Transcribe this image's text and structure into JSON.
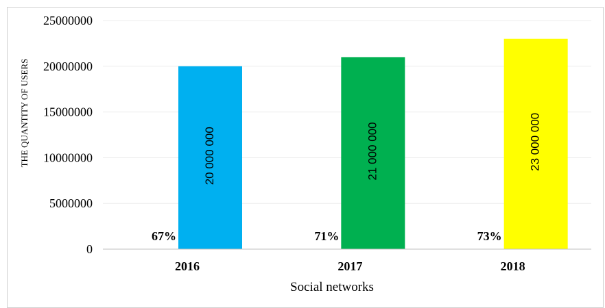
{
  "chart_data": {
    "type": "bar",
    "categories": [
      "2016",
      "2017",
      "2018"
    ],
    "values": [
      20000000,
      21000000,
      23000000
    ],
    "value_labels": [
      "20 000 000",
      "21 000 000",
      "23 000 000"
    ],
    "percent_labels": [
      "67%",
      "71%",
      "73%"
    ],
    "bar_colors": [
      "#00b0f0",
      "#00b050",
      "#ffff00"
    ],
    "title": "",
    "xlabel": "Social networks",
    "ylabel": "THE QUANTITY  OF USERS",
    "ylim": [
      0,
      25000000
    ],
    "yticks": [
      0,
      5000000,
      10000000,
      15000000,
      20000000,
      25000000
    ],
    "ytick_labels": [
      "0",
      "5000000",
      "10000000",
      "15000000",
      "20000000",
      "25000000"
    ],
    "grid": true,
    "legend": "none"
  }
}
